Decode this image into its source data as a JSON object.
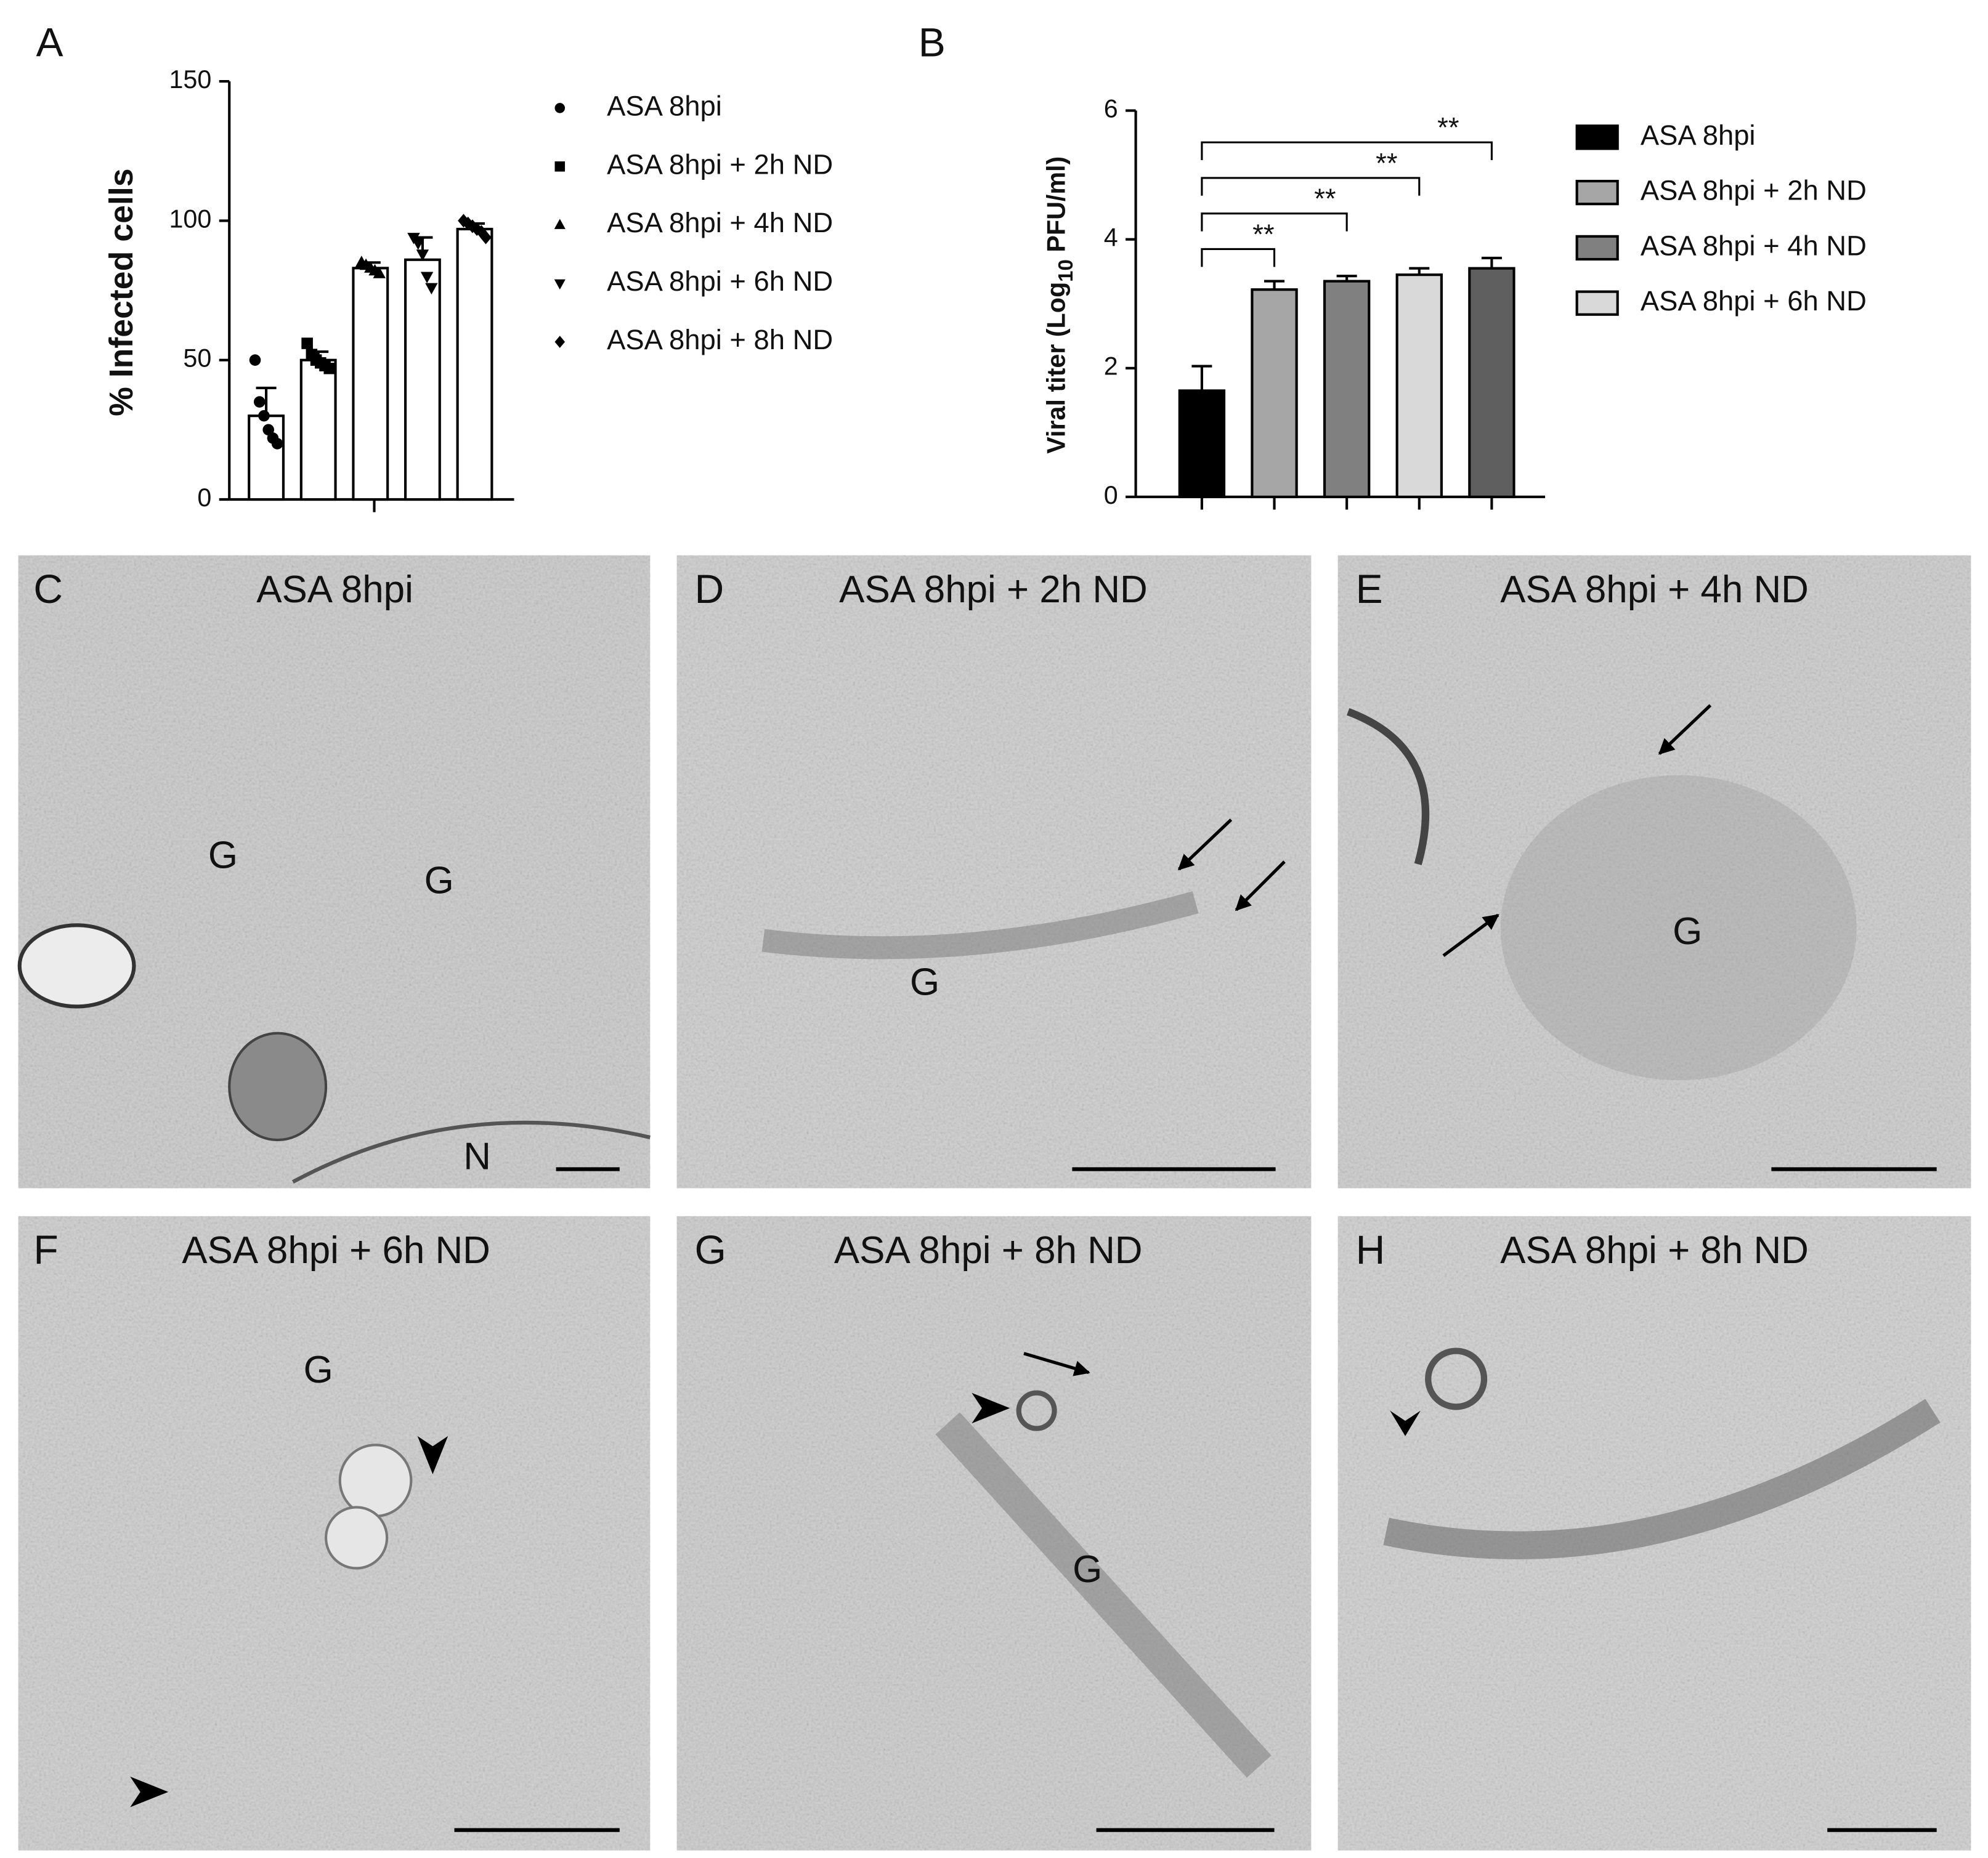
{
  "chart_data": [
    {
      "type": "bar",
      "panel": "A",
      "ylabel": "% Infected cells",
      "ylim": [
        0,
        150
      ],
      "yticks": [
        0,
        50,
        100,
        150
      ],
      "series": [
        {
          "name": "ASA 8hpi",
          "marker": "circle",
          "color": "#ffffff",
          "values": [
            30
          ],
          "errors": [
            10
          ],
          "points": [
            50,
            35,
            30,
            25,
            22,
            20
          ]
        },
        {
          "name": "ASA 8hpi + 2h ND",
          "marker": "square",
          "color": "#ffffff",
          "values": [
            50
          ],
          "errors": [
            3
          ],
          "points": [
            56,
            52,
            50,
            49,
            48,
            47
          ]
        },
        {
          "name": "ASA 8hpi + 4h ND",
          "marker": "triangle",
          "color": "#ffffff",
          "values": [
            83
          ],
          "errors": [
            2
          ],
          "points": [
            85,
            84,
            83,
            82,
            81
          ]
        },
        {
          "name": "ASA 8hpi + 6h ND",
          "marker": "triangle-down",
          "color": "#ffffff",
          "values": [
            86
          ],
          "errors": [
            8
          ],
          "points": [
            94,
            92,
            88,
            80,
            76
          ]
        },
        {
          "name": "ASA 8hpi + 8h ND",
          "marker": "diamond",
          "color": "#ffffff",
          "values": [
            97
          ],
          "errors": [
            2
          ],
          "points": [
            100,
            99,
            98,
            97,
            96,
            94
          ]
        }
      ]
    },
    {
      "type": "bar",
      "panel": "B",
      "ylabel": [
        "Viral titer (Log",
        "10",
        " PFU/ml)"
      ],
      "ylim": [
        0,
        6
      ],
      "yticks": [
        0,
        2,
        4,
        6
      ],
      "series": [
        {
          "name": "ASA 8hpi",
          "color": "#000000",
          "values": [
            1.65
          ],
          "errors": [
            0.38
          ]
        },
        {
          "name": "ASA 8hpi + 2h ND",
          "color": "#a6a6a6",
          "values": [
            3.22
          ],
          "errors": [
            0.13
          ]
        },
        {
          "name": "ASA 8hpi + 4h ND",
          "color": "#808080",
          "values": [
            3.35
          ],
          "errors": [
            0.08
          ]
        },
        {
          "name": "ASA 8hpi + 6h ND",
          "color": "#d9d9d9",
          "values": [
            3.45
          ],
          "errors": [
            0.1
          ]
        },
        {
          "color": "#5f5f5f",
          "values": [
            3.55
          ],
          "errors": [
            0.16
          ]
        }
      ],
      "brackets": [
        {
          "label": "**",
          "from": 0,
          "to": 1
        },
        {
          "label": "**",
          "from": 0,
          "to": 2
        },
        {
          "label": "**",
          "from": 0,
          "to": 3
        },
        {
          "label": "**",
          "from": 0,
          "to": 4
        }
      ]
    }
  ],
  "panels": [
    {
      "letter": "C",
      "title": "ASA 8hpi",
      "labels": [
        "G",
        "G",
        "N"
      ]
    },
    {
      "letter": "D",
      "title": "ASA 8hpi + 2h ND",
      "labels": [
        "G"
      ]
    },
    {
      "letter": "E",
      "title": "ASA 8hpi + 4h ND",
      "labels": [
        "G"
      ]
    },
    {
      "letter": "F",
      "title": "ASA 8hpi + 6h ND",
      "labels": [
        "G"
      ]
    },
    {
      "letter": "G",
      "title": "ASA 8hpi + 8h ND",
      "labels": [
        "G"
      ]
    },
    {
      "letter": "H",
      "title": "ASA 8hpi + 8h ND"
    }
  ]
}
